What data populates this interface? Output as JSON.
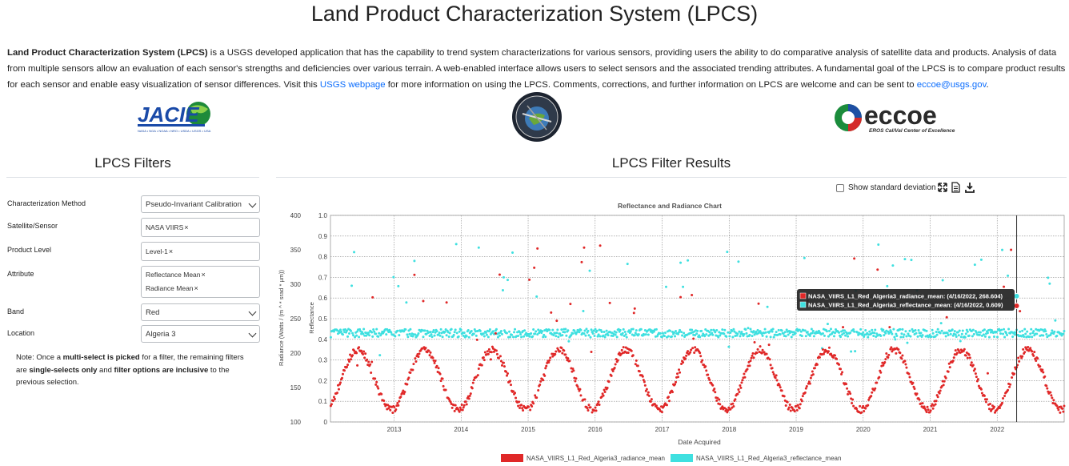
{
  "page": {
    "title": "Land Product Characterization System (LPCS)",
    "intro": {
      "bold": "Land Product Characterization System (LPCS)",
      "text1": " is a USGS developed application that has the capability to trend system characterizations for various sensors, providing users the ability to do comparative analysis of satellite data and products. Analysis of data from multiple sensors allow an evaluation of each sensor's strengths and deficiencies over various terrain. A web-enabled interface allows users to select sensors and the associated trending attributes. A fundamental goal of the LPCS is to compare product results for each sensor and enable easy visualization of sensor differences. Visit this ",
      "link1": "USGS webpage",
      "text2": " for more information on using the LPCS. Comments, corrections, and further information on LPCS are welcome and can be sent to ",
      "link2": "eccoe@usgs.gov",
      "text3": "."
    }
  },
  "logos": {
    "jacie": {
      "text": "JACIE",
      "subtext": "NASA • NGA • NOAA • NRO • USDA • USGS • USA"
    },
    "eccoe": {
      "text": "eccoe",
      "subtext": "EROS Cal/Val Center of Excellence"
    }
  },
  "filters": {
    "title": "LPCS Filters",
    "characterization_method": {
      "label": "Characterization Method",
      "value": "Pseudo-Invariant Calibration"
    },
    "satellite_sensor": {
      "label": "Satellite/Sensor",
      "tags": [
        "NASA VIIRS"
      ]
    },
    "product_level": {
      "label": "Product Level",
      "tags": [
        "Level-1"
      ]
    },
    "attribute": {
      "label": "Attribute",
      "tags": [
        "Reflectance Mean",
        "Radiance Mean"
      ]
    },
    "band": {
      "label": "Band",
      "value": "Red"
    },
    "location": {
      "label": "Location",
      "value": "Algeria 3"
    },
    "note": {
      "t1": "Note: Once a ",
      "b1": "multi-select is picked",
      "t2": " for a filter, the remaining filters are ",
      "b2": "single-selects only",
      "t3": " and ",
      "b3": "filter options are inclusive",
      "t4": " to the previous selection."
    },
    "remove_glyph": "×"
  },
  "results": {
    "title": "LPCS Filter Results",
    "show_std_label": "Show standard deviation",
    "icons": [
      "expand-icon",
      "document-icon",
      "download-icon"
    ]
  },
  "chart_data": {
    "type": "scatter",
    "title": "Reflectance and Radiance Chart",
    "xlabel": "Date Acquired",
    "ylabel_left": "Radiance (Watts / (m ^ * srad * µm))",
    "ylabel_right": "Reflectance",
    "xlim": [
      2012.05,
      2023.0
    ],
    "x_ticks": [
      "2013",
      "2014",
      "2015",
      "2016",
      "2017",
      "2018",
      "2019",
      "2020",
      "2021",
      "2022"
    ],
    "y_left_lim": [
      100,
      400
    ],
    "y_left_ticks": [
      "100",
      "150",
      "200",
      "250",
      "300",
      "350",
      "400"
    ],
    "y_right_lim": [
      0.0,
      1.0
    ],
    "y_right_ticks": [
      "0",
      "0.1",
      "0.2",
      "0.3",
      "0.4",
      "0.5",
      "0.6",
      "0.7",
      "0.8",
      "0.9",
      "1.0"
    ],
    "grid": true,
    "legend_position": "bottom",
    "series": [
      {
        "name": "NASA_VIIRS_L1_Red_Algeria3_radiance_mean",
        "axis": "left",
        "color": "#e02828",
        "description_seasonal": {
          "min": 118,
          "max": 205,
          "peak_month": "June"
        }
      },
      {
        "name": "NASA_VIIRS_L1_Red_Algeria3_reflectance_mean",
        "axis": "right",
        "color": "#3fe0e0",
        "description_level": {
          "center": 0.43,
          "spread": 0.02
        }
      }
    ],
    "highlight_date": "4/16/2022",
    "tooltip": [
      {
        "color": "#e02828",
        "text": "NASA_VIIRS_L1_Red_Algeria3_radiance_mean: (4/16/2022, 268.604)"
      },
      {
        "color": "#3fe0e0",
        "text": "NASA_VIIRS_L1_Red_Algeria3_reflectance_mean: (4/16/2022, 0.609)"
      }
    ],
    "highlight_values": {
      "radiance": 268.604,
      "reflectance": 0.609
    }
  }
}
